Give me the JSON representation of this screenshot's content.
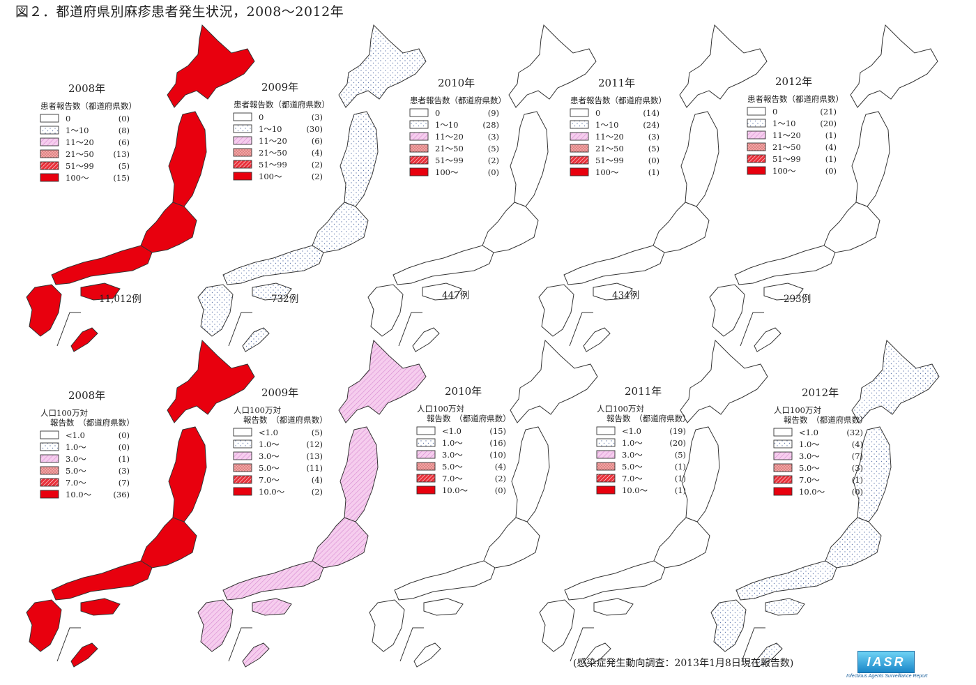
{
  "title": "図２．都道府県別麻疹患者発生状況，2008〜2012年",
  "colors": {
    "c0": "#ffffff",
    "c1": "#ffffff",
    "c2": "#f3c6e8",
    "c3": "#ef9f9f",
    "c4": "#e8303a",
    "c5": "#e8000e",
    "outline": "#333333"
  },
  "top_row": {
    "legend_title": "患者報告数（都道府県数）",
    "categories": [
      "0",
      "1〜10",
      "11〜20",
      "21〜50",
      "51〜99",
      "100〜"
    ],
    "panels": [
      {
        "year": "2008年",
        "total": "11,012例",
        "counts": [
          "(0)",
          "(8)",
          "(6)",
          "(13)",
          "(5)",
          "(15)"
        ]
      },
      {
        "year": "2009年",
        "total": "732例",
        "counts": [
          "(3)",
          "(30)",
          "(6)",
          "(4)",
          "(2)",
          "(2)"
        ]
      },
      {
        "year": "2010年",
        "total": "447例",
        "counts": [
          "(9)",
          "(28)",
          "(3)",
          "(5)",
          "(2)",
          "(0)"
        ]
      },
      {
        "year": "2011年",
        "total": "434例",
        "counts": [
          "(14)",
          "(24)",
          "(3)",
          "(5)",
          "(0)",
          "(1)"
        ]
      },
      {
        "year": "2012年",
        "total": "293例",
        "counts": [
          "(21)",
          "(20)",
          "(1)",
          "(4)",
          "(1)",
          "(0)"
        ]
      }
    ]
  },
  "bottom_row": {
    "legend_title_1": "人口100万対",
    "legend_title_2": "報告数　（都道府県数）",
    "categories": [
      "<1.0",
      "1.0〜",
      "3.0〜",
      "5.0〜",
      "7.0〜",
      "10.0〜"
    ],
    "panels": [
      {
        "year": "2008年",
        "counts": [
          "(0)",
          "(0)",
          "(1)",
          "(3)",
          "(7)",
          "(36)"
        ]
      },
      {
        "year": "2009年",
        "counts": [
          "(5)",
          "(12)",
          "(13)",
          "(11)",
          "(4)",
          "(2)"
        ]
      },
      {
        "year": "2010年",
        "counts": [
          "(15)",
          "(16)",
          "(10)",
          "(4)",
          "(2)",
          "(0)"
        ]
      },
      {
        "year": "2011年",
        "counts": [
          "(19)",
          "(20)",
          "(5)",
          "(1)",
          "(1)",
          "(1)"
        ]
      },
      {
        "year": "2012年",
        "counts": [
          "(32)",
          "(4)",
          "(7)",
          "(3)",
          "(1)",
          "(0)"
        ]
      }
    ]
  },
  "source_note": "(感染症発生動向調査：2013年1月8日現在報告数)",
  "logo": {
    "text": "IASR",
    "caption": "Infectious Agents Surveillance Report"
  }
}
